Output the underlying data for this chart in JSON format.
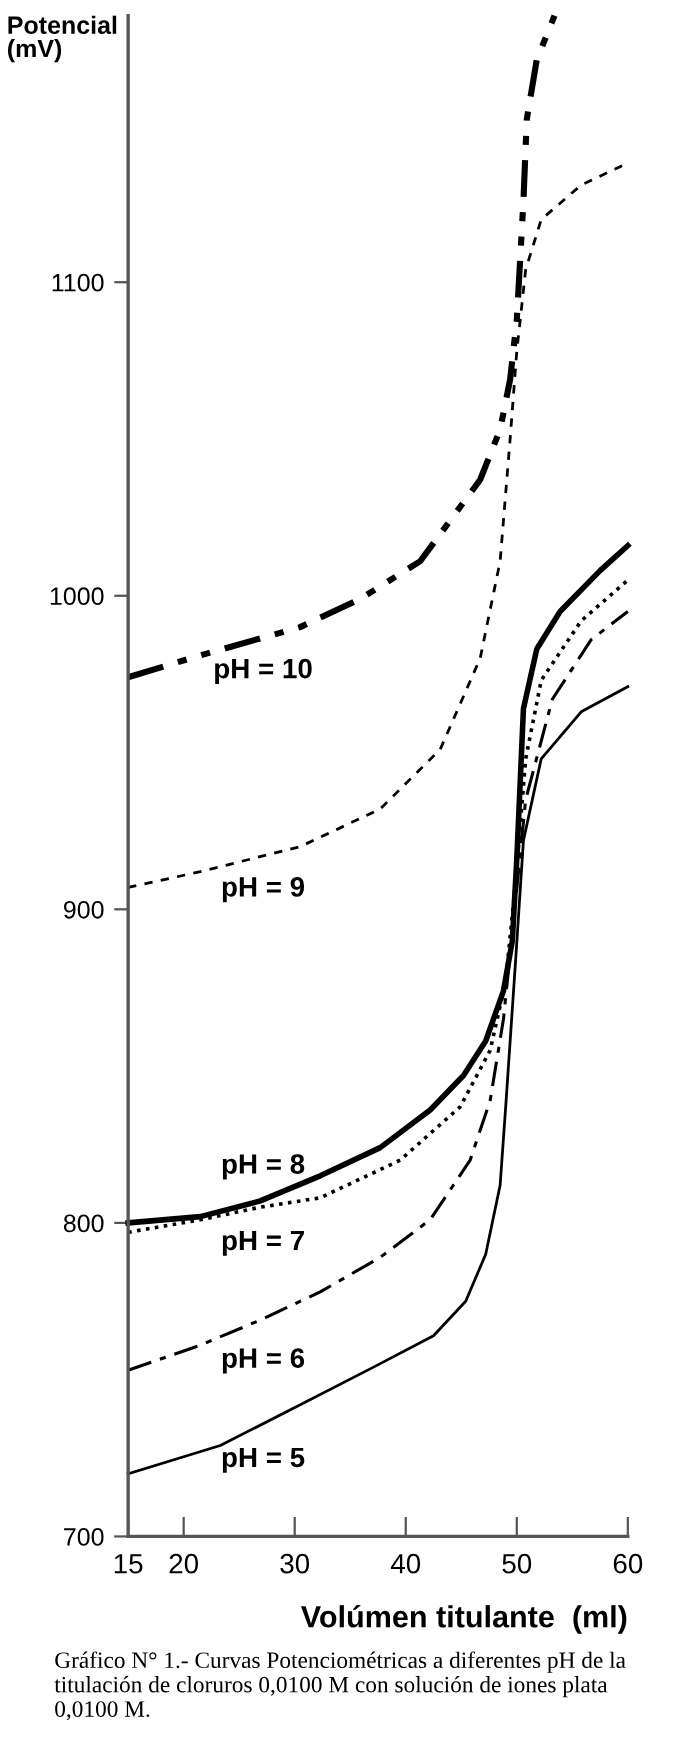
{
  "chart_data": {
    "type": "line",
    "ylabel": "Potencial\n(mV)",
    "xlabel": "Volúmen titulante  (ml)",
    "xlim": [
      15,
      60
    ],
    "xticks": [
      15,
      20,
      30,
      40,
      50,
      60
    ],
    "ylim": [
      700,
      1185
    ],
    "yticks": [
      700,
      800,
      900,
      1000,
      1100
    ],
    "grid": false,
    "marker": "none",
    "series": [
      {
        "name": "pH = 10",
        "color": "#000000",
        "line_style": "dashdotdot",
        "x": [
          15,
          21.5,
          30.5,
          35.9,
          41.3,
          46.7,
          48.5,
          49.4,
          50,
          50.6,
          50.9,
          51.8,
          53.4
        ],
        "values": [
          974,
          981,
          990,
          999,
          1011,
          1037,
          1053,
          1069,
          1088,
          1126,
          1152,
          1171,
          1185
        ]
      },
      {
        "name": "pH = 9",
        "color": "#000000",
        "line_style": "dashed",
        "x": [
          15,
          21.5,
          30.5,
          37.7,
          43.1,
          46.7,
          48.5,
          49.4,
          50,
          50.8,
          52.2,
          55.8,
          60
        ],
        "values": [
          907,
          912,
          920,
          932,
          951,
          980,
          1011,
          1050,
          1078,
          1104,
          1120,
          1131,
          1138
        ]
      },
      {
        "name": "pH = 8",
        "color": "#000000",
        "line_style": "solid",
        "x": [
          15,
          21.5,
          26.9,
          32.3,
          37.7,
          42.2,
          45.2,
          47.2,
          48.8,
          49.6,
          50,
          50.6,
          51.8,
          53.9,
          57.5,
          60
        ],
        "values": [
          800,
          802,
          807,
          815,
          824,
          836,
          847,
          858,
          874,
          890,
          916,
          964,
          983,
          995,
          1008,
          1016
        ]
      },
      {
        "name": "pH = 7",
        "color": "#000000",
        "line_style": "dotted",
        "x": [
          15,
          21.5,
          26.9,
          32.3,
          39.5,
          44.9,
          47.6,
          49,
          49.9,
          50.8,
          52.2,
          55.8,
          60
        ],
        "values": [
          797,
          801,
          805,
          808,
          820,
          837,
          855,
          877,
          909,
          948,
          973,
          992,
          1005
        ]
      },
      {
        "name": "pH = 6",
        "color": "#000000",
        "line_style": "dashdot",
        "x": [
          15,
          21.5,
          26.9,
          32.3,
          37.7,
          42.2,
          45.8,
          47.6,
          48.8,
          49.9,
          50.8,
          53.2,
          56.7,
          60
        ],
        "values": [
          753,
          761,
          769,
          778,
          789,
          801,
          820,
          839,
          865,
          903,
          935,
          967,
          986,
          995
        ]
      },
      {
        "name": "pH = 5",
        "color": "#000000",
        "line_style": "solid",
        "x": [
          15,
          23.3,
          30.5,
          37.1,
          42.5,
          45.4,
          47.2,
          48.5,
          49,
          49.9,
          50.6,
          52.2,
          55.8,
          60
        ],
        "values": [
          720,
          729,
          742,
          754,
          764,
          775,
          790,
          812,
          837,
          884,
          922,
          948,
          963,
          971
        ]
      }
    ],
    "annotations": [
      "Gráfico N° 1.- Curvas Potenciométricas a diferentes pH de la titulación de cloruros 0,0100 M con solución de iones plata 0,0100 M."
    ]
  }
}
